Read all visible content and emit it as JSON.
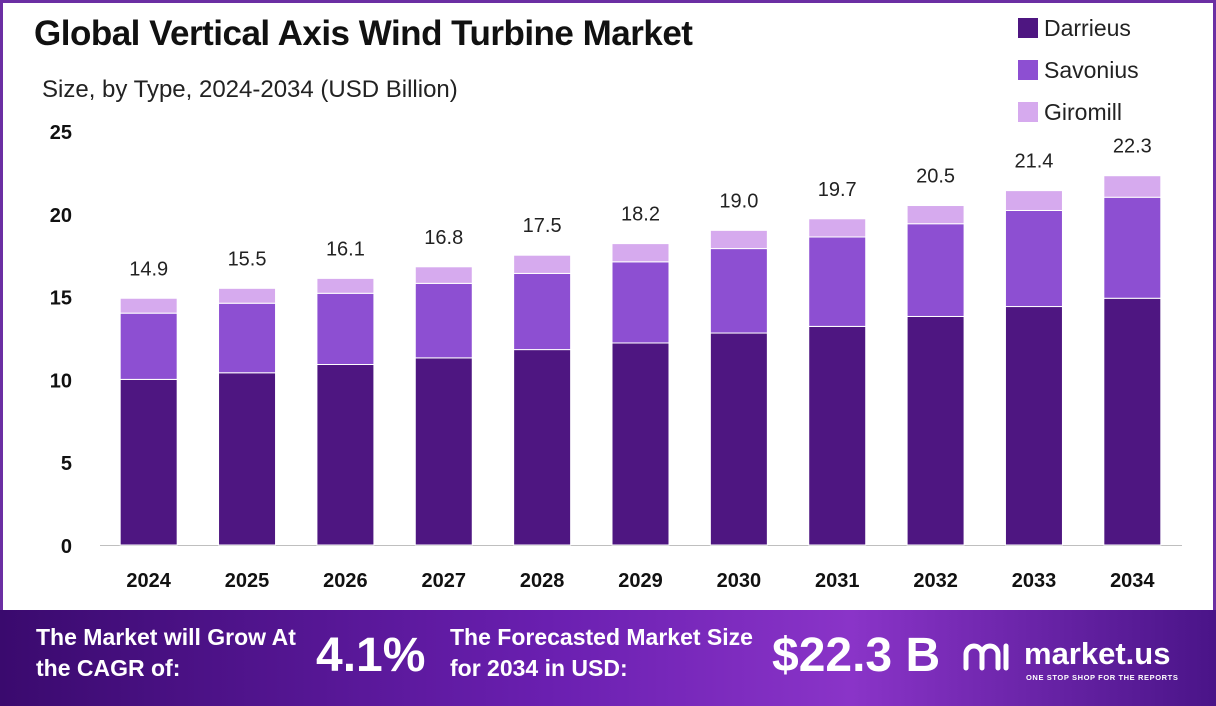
{
  "header": {
    "title": "Global Vertical Axis Wind Turbine Market",
    "subtitle": "Size, by Type, 2024-2034 (USD Billion)"
  },
  "chart_data": {
    "type": "bar",
    "stacked": true,
    "categories": [
      "2024",
      "2025",
      "2026",
      "2027",
      "2028",
      "2029",
      "2030",
      "2031",
      "2032",
      "2033",
      "2034"
    ],
    "series": [
      {
        "name": "Darrieus",
        "color": "#4e1681",
        "values": [
          10.0,
          10.4,
          10.9,
          11.3,
          11.8,
          12.2,
          12.8,
          13.2,
          13.8,
          14.4,
          14.9
        ]
      },
      {
        "name": "Savonius",
        "color": "#8d4fd2",
        "values": [
          4.0,
          4.2,
          4.3,
          4.5,
          4.6,
          4.9,
          5.1,
          5.4,
          5.6,
          5.8,
          6.1
        ]
      },
      {
        "name": "Giromill",
        "color": "#d6aaee",
        "values": [
          0.9,
          0.9,
          0.9,
          1.0,
          1.1,
          1.1,
          1.1,
          1.1,
          1.1,
          1.2,
          1.3
        ]
      }
    ],
    "totals": [
      "14.9",
      "15.5",
      "16.1",
      "16.8",
      "17.5",
      "18.2",
      "19.0",
      "19.7",
      "20.5",
      "21.4",
      "22.3"
    ],
    "ylim": [
      0,
      25
    ],
    "yticks": [
      "0",
      "5",
      "10",
      "15",
      "20",
      "25"
    ],
    "grid": false,
    "legend_position": "top-right"
  },
  "footer": {
    "cagr_label": "The Market will Grow At the CAGR of:",
    "cagr_value": "4.1%",
    "forecast_label": "The Forecasted Market Size for 2034 in USD:",
    "forecast_value": "$22.3 B",
    "brand": "market.us",
    "brand_tagline": "ONE STOP SHOP FOR THE REPORTS",
    "brand_icon": "market-us-logo-icon"
  }
}
